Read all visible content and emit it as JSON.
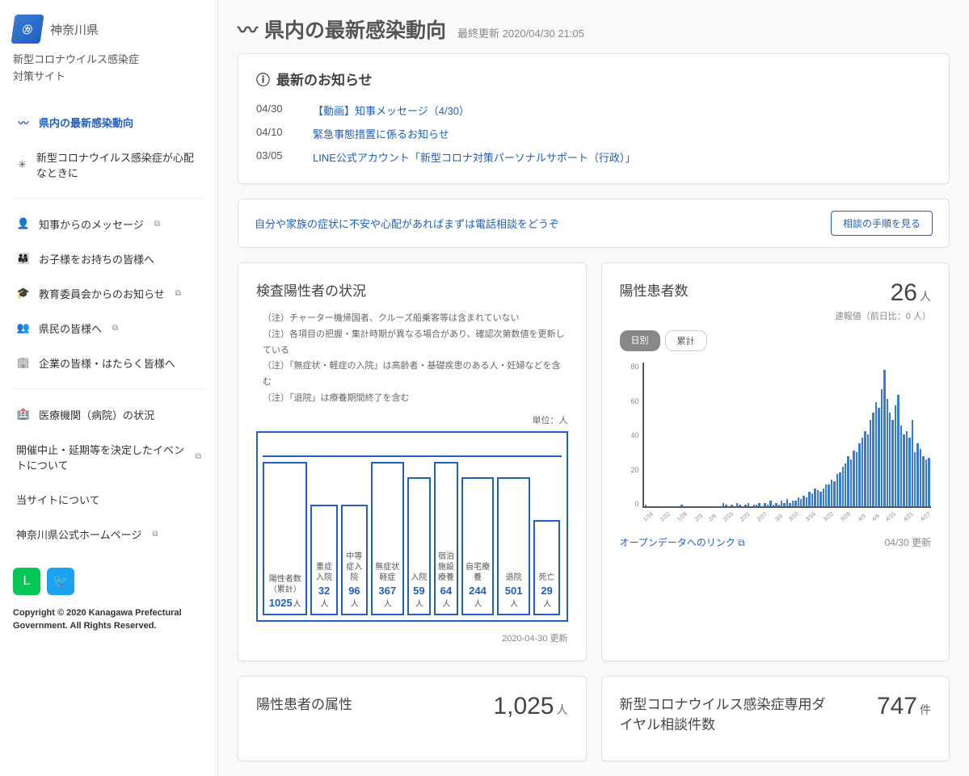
{
  "site": {
    "prefecture": "神奈川県",
    "title_line1": "新型コロナウイルス感染症",
    "title_line2": "対策サイト",
    "copyright": "Copyright © 2020 Kanagawa Prefectural Government. All Rights Reserved."
  },
  "nav": {
    "item0": "県内の最新感染動向",
    "item1": "新型コロナウイルス感染症が心配なときに",
    "item2": "知事からのメッセージ",
    "item3": "お子様をお持ちの皆様へ",
    "item4": "教育委員会からのお知らせ",
    "item5": "県民の皆様へ",
    "item6": "企業の皆様・はたらく皆様へ",
    "item7": "医療機関（病院）の状況",
    "item8": "開催中止・延期等を決定したイベントについて",
    "item9": "当サイトについて",
    "item10": "神奈川県公式ホームページ"
  },
  "page": {
    "title": "県内の最新感染動向",
    "updated": "最終更新 2020/04/30 21:05"
  },
  "news": {
    "title": "最新のお知らせ",
    "r0": {
      "date": "04/30",
      "text": "【動画】知事メッセージ（4/30）"
    },
    "r1": {
      "date": "04/10",
      "text": "緊急事態措置に係るお知らせ"
    },
    "r2": {
      "date": "03/05",
      "text": "LINE公式アカウント「新型コロナ対策パーソナルサポート（行政）」"
    }
  },
  "banner": {
    "text": "自分や家族の症状に不安や心配があればまずは電話相談をどうぞ",
    "button": "相談の手順を見る"
  },
  "status": {
    "title": "検査陽性者の状況",
    "note1": "（注）チャーター機帰国者、クルーズ船乗客等は含まれていない",
    "note2": "（注）各項目の把握・集計時期が異なる場合があり、確認次第数値を更新している",
    "note3": "（注）「無症状・軽症の入院」は高齢者・基礎疾患のある人・妊婦などを含む",
    "note4": "（注）「退院」は療養期間終了を含む",
    "unit": "単位：人",
    "updated": "2020-04-30 更新",
    "boxes": {
      "b0": {
        "label": "陽性者数（累計）",
        "value": "1025",
        "h": 100
      },
      "b1": {
        "label": "重症入院",
        "value": "32",
        "h": 72
      },
      "b2": {
        "label": "中等症入院",
        "value": "96",
        "h": 72
      },
      "b3": {
        "label": "無症状軽症",
        "value": "367",
        "h": 100
      },
      "b4": {
        "label": "入院",
        "value": "59",
        "h": 90
      },
      "b5": {
        "label": "宿泊施設療養",
        "value": "64",
        "h": 100
      },
      "b6": {
        "label": "自宅療養",
        "value": "244",
        "h": 90
      },
      "b7": {
        "label": "退院",
        "value": "501",
        "h": 90
      },
      "b8": {
        "label": "死亡",
        "value": "29",
        "h": 62
      }
    }
  },
  "cases": {
    "title": "陽性患者数",
    "big": "26",
    "unit": "人",
    "sub": "速報値（前日比：0 人）",
    "tab_daily": "日別",
    "tab_total": "累計",
    "open_data": "オープンデータへのリンク",
    "updated": "04/30 更新",
    "ylabels": [
      "80",
      "60",
      "40",
      "20",
      "0"
    ],
    "xlabels": [
      "1/16",
      "1/22",
      "1/28",
      "2/3",
      "2/9",
      "2/15",
      "2/21",
      "2/27",
      "3/4",
      "3/10",
      "3/16",
      "3/22",
      "3/28",
      "4/3",
      "4/9",
      "4/15",
      "4/21",
      "4/27"
    ],
    "bars": [
      1,
      0,
      0,
      0,
      0,
      0,
      0,
      0,
      0,
      0,
      0,
      0,
      0,
      1,
      0,
      0,
      0,
      0,
      0,
      0,
      0,
      0,
      0,
      0,
      0,
      0,
      0,
      0,
      2,
      1,
      0,
      1,
      0,
      2,
      1,
      0,
      1,
      2,
      0,
      1,
      1,
      2,
      0,
      2,
      1,
      3,
      1,
      2,
      1,
      3,
      2,
      4,
      2,
      3,
      3,
      5,
      4,
      6,
      5,
      8,
      7,
      10,
      9,
      8,
      10,
      12,
      12,
      15,
      14,
      18,
      19,
      22,
      24,
      28,
      26,
      31,
      30,
      35,
      38,
      42,
      40,
      48,
      52,
      58,
      55,
      65,
      76,
      60,
      52,
      48,
      56,
      62,
      45,
      40,
      42,
      38,
      48,
      30,
      35,
      32,
      28,
      26,
      27
    ]
  },
  "attr": {
    "title": "陽性患者の属性",
    "big": "1,025",
    "unit": "人"
  },
  "dial": {
    "title": "新型コロナウイルス感染症専用ダイヤル相談件数",
    "big": "747",
    "unit": "件"
  }
}
